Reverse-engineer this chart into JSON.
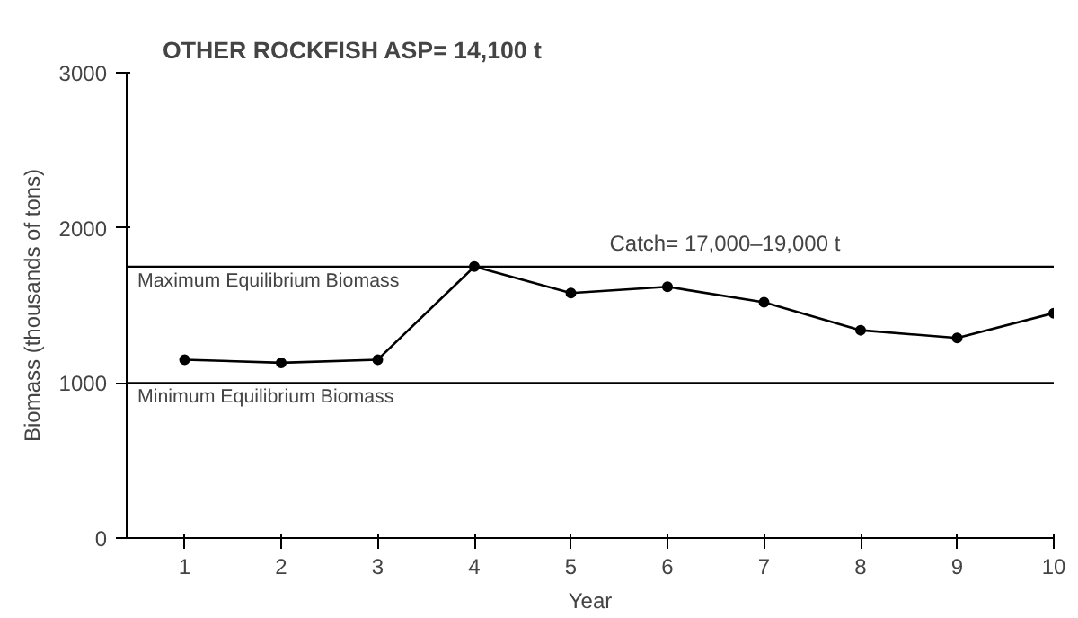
{
  "chart_data": {
    "type": "line",
    "title": "OTHER ROCKFISH    ASP= 14,100 t",
    "xlabel": "Year",
    "ylabel": "Biomass (thousands of tons)",
    "x": [
      1,
      2,
      3,
      4,
      5,
      6,
      7,
      8,
      9,
      10
    ],
    "series": [
      {
        "color": "#000000",
        "values": [
          1150,
          1130,
          1150,
          1750,
          1580,
          1620,
          1520,
          1340,
          1290,
          1450
        ]
      }
    ],
    "xlim": [
      0.4,
      10
    ],
    "ylim": [
      0,
      3000
    ],
    "xticks": [
      1,
      2,
      3,
      4,
      5,
      6,
      7,
      8,
      9,
      10
    ],
    "yticks": [
      0,
      1000,
      2000,
      3000
    ],
    "ref_lines": [
      {
        "axis": "y",
        "value": 1750,
        "label": "Maximum Equilibrium Biomass",
        "color": "#000000"
      },
      {
        "axis": "y",
        "value": 1000,
        "label": "Minimum Equilibrium Biomass",
        "color": "#000000"
      }
    ],
    "annotations": [
      "Catch= 17,000–19,000 t"
    ],
    "marker": "circle",
    "line_style": "solid",
    "grid": false
  }
}
